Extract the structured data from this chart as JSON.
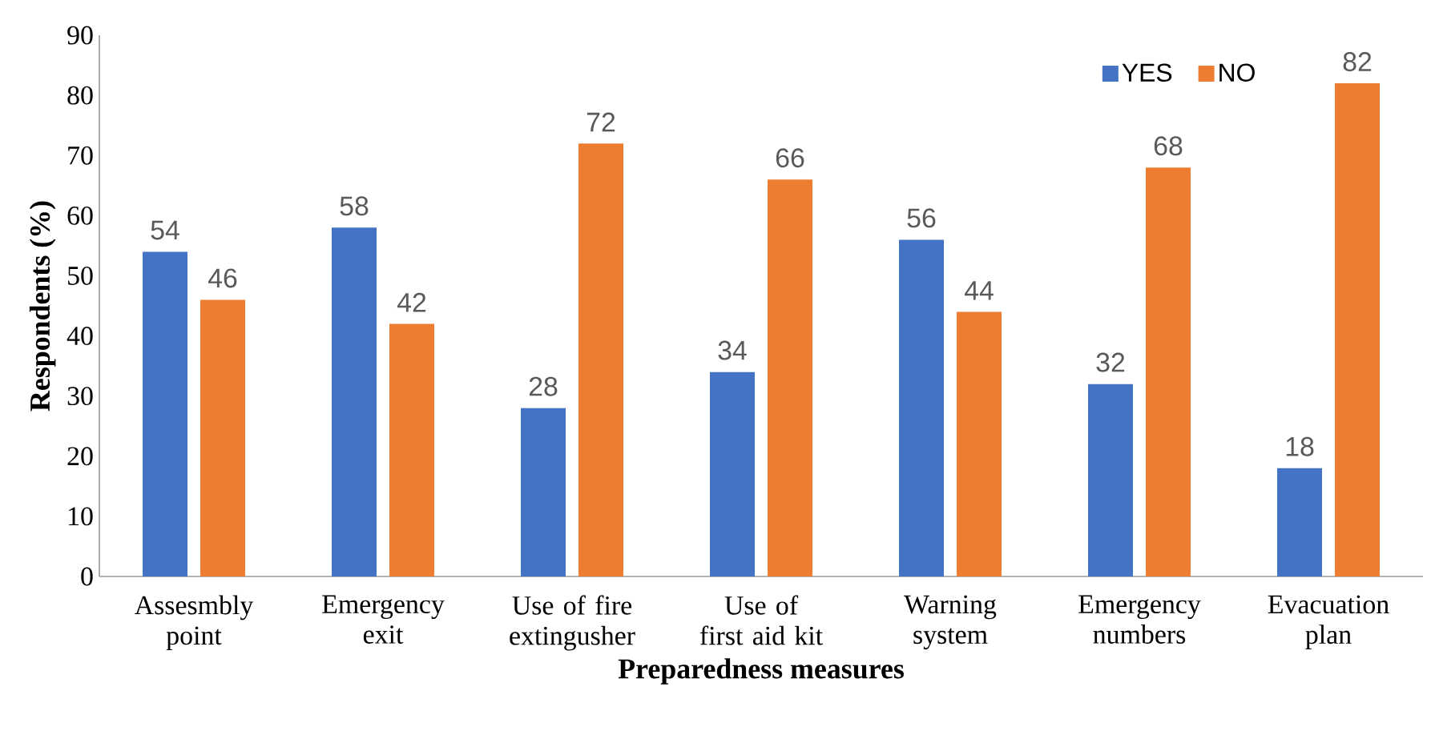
{
  "chart_data": {
    "type": "bar",
    "xlabel": "Preparedness measures",
    "ylabel": "Respondents (%)",
    "categories": [
      "Assesmbly point",
      "Emergency exit",
      "Use of fire extingusher",
      "Use of first aid kit",
      "Warning system",
      "Emergency numbers",
      "Evacuation plan"
    ],
    "series": [
      {
        "name": "YES",
        "color": "#4472c4",
        "values": [
          54,
          58,
          28,
          34,
          56,
          32,
          18
        ]
      },
      {
        "name": "NO",
        "color": "#ed7d31",
        "values": [
          46,
          42,
          72,
          66,
          44,
          68,
          82
        ]
      }
    ],
    "ylim": [
      0,
      90
    ],
    "yticks": [
      0,
      10,
      20,
      30,
      40,
      50,
      60,
      70,
      80,
      90
    ],
    "grid": false,
    "legend": "top right",
    "data_labels": true
  }
}
